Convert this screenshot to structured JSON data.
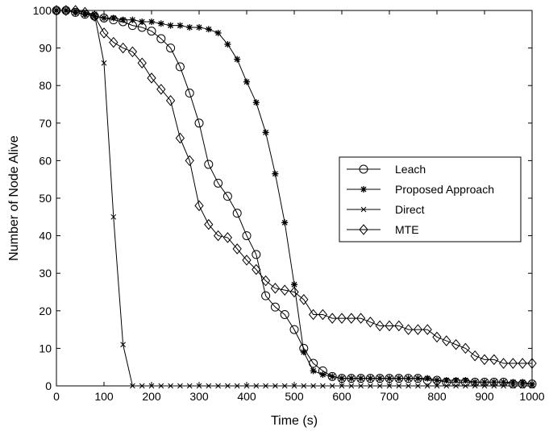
{
  "chart_data": {
    "type": "line",
    "title": "",
    "xlabel": "Time (s)",
    "ylabel": "Number of Node Alive",
    "xlim": [
      0,
      1000
    ],
    "ylim": [
      0,
      100
    ],
    "xticks": [
      0,
      100,
      200,
      300,
      400,
      500,
      600,
      700,
      800,
      900,
      1000
    ],
    "yticks": [
      0,
      10,
      20,
      30,
      40,
      50,
      60,
      70,
      80,
      90,
      100
    ],
    "grid": false,
    "legend_position": "right",
    "series": [
      {
        "name": "Leach",
        "marker": "circle",
        "color": "#000000",
        "x": [
          0,
          20,
          40,
          60,
          80,
          100,
          120,
          140,
          160,
          180,
          200,
          220,
          240,
          260,
          280,
          300,
          320,
          340,
          360,
          380,
          400,
          420,
          440,
          460,
          480,
          500,
          520,
          540,
          560,
          580,
          600,
          620,
          640,
          660,
          680,
          700,
          720,
          740,
          760,
          780,
          800,
          820,
          840,
          860,
          880,
          900,
          920,
          940,
          960,
          980,
          1000
        ],
        "y": [
          100,
          100,
          99.5,
          99,
          98.5,
          98,
          97.5,
          97,
          96,
          95.5,
          94.5,
          92.5,
          90,
          85,
          78,
          70,
          59,
          54,
          50.5,
          46,
          40,
          35,
          24,
          21,
          19,
          15,
          10,
          6,
          4,
          2.5,
          2,
          2,
          2,
          2,
          2,
          2,
          2,
          2,
          2,
          1.5,
          1.5,
          1,
          1,
          1,
          1,
          1,
          1,
          1,
          0.5,
          0.5,
          0.5
        ]
      },
      {
        "name": "Proposed Approach",
        "marker": "star",
        "color": "#000000",
        "x": [
          0,
          20,
          40,
          60,
          80,
          100,
          120,
          140,
          160,
          180,
          200,
          220,
          240,
          260,
          280,
          300,
          320,
          340,
          360,
          380,
          400,
          420,
          440,
          460,
          480,
          500,
          520,
          540,
          560,
          580,
          600,
          620,
          640,
          660,
          680,
          700,
          720,
          740,
          760,
          780,
          800,
          820,
          840,
          860,
          880,
          900,
          920,
          940,
          960,
          980,
          1000
        ],
        "y": [
          100,
          100,
          99.5,
          99,
          98.5,
          98,
          98,
          97.5,
          97.5,
          97,
          97,
          96.5,
          96,
          96,
          95.5,
          95.5,
          95,
          94,
          91,
          87,
          81,
          75.5,
          67.5,
          56.5,
          43.5,
          27,
          9,
          4,
          3,
          2.5,
          2,
          2,
          2,
          2,
          2,
          2,
          2,
          2,
          2,
          2,
          1.5,
          1.5,
          1.5,
          1.5,
          1,
          1,
          1,
          1,
          1,
          1,
          0.5
        ]
      },
      {
        "name": "Direct",
        "marker": "x",
        "color": "#000000",
        "x": [
          0,
          20,
          40,
          60,
          80,
          100,
          120,
          140,
          160,
          180,
          200,
          220,
          240,
          260,
          280,
          300,
          320,
          340,
          360,
          380,
          400,
          420,
          440,
          460,
          480,
          500,
          520,
          540,
          560,
          580,
          600,
          620,
          640,
          660,
          680,
          700,
          720,
          740,
          760,
          780,
          800,
          820,
          840,
          860,
          880,
          900,
          920,
          940,
          960,
          980,
          1000
        ],
        "y": [
          100,
          100,
          100,
          99.5,
          99,
          86,
          45,
          11,
          0,
          0,
          0,
          0,
          0,
          0,
          0,
          0,
          0,
          0,
          0,
          0,
          0,
          0,
          0,
          0,
          0,
          0,
          0,
          0,
          0,
          0,
          0,
          0,
          0,
          0,
          0,
          0,
          0,
          0,
          0,
          0,
          0,
          0,
          0,
          0,
          0,
          0,
          0,
          0,
          0,
          0,
          0
        ]
      },
      {
        "name": "MTE",
        "marker": "diamond",
        "color": "#000000",
        "x": [
          0,
          20,
          40,
          60,
          80,
          100,
          120,
          140,
          160,
          180,
          200,
          220,
          240,
          260,
          280,
          300,
          320,
          340,
          360,
          380,
          400,
          420,
          440,
          460,
          480,
          500,
          520,
          540,
          560,
          580,
          600,
          620,
          640,
          660,
          680,
          700,
          720,
          740,
          760,
          780,
          800,
          820,
          840,
          860,
          880,
          900,
          920,
          940,
          960,
          980,
          1000
        ],
        "y": [
          100,
          100,
          100,
          99.5,
          98.5,
          94,
          91.5,
          90,
          89,
          86,
          82,
          79,
          76,
          66,
          60,
          48,
          43,
          40,
          39.5,
          36.5,
          33.5,
          31,
          28,
          26,
          25.5,
          25,
          23,
          19,
          19,
          18,
          18,
          18,
          18,
          17,
          16,
          16,
          16,
          15,
          15,
          15,
          13,
          12,
          11,
          10,
          8,
          7,
          7,
          6,
          6,
          6,
          6
        ]
      }
    ]
  }
}
